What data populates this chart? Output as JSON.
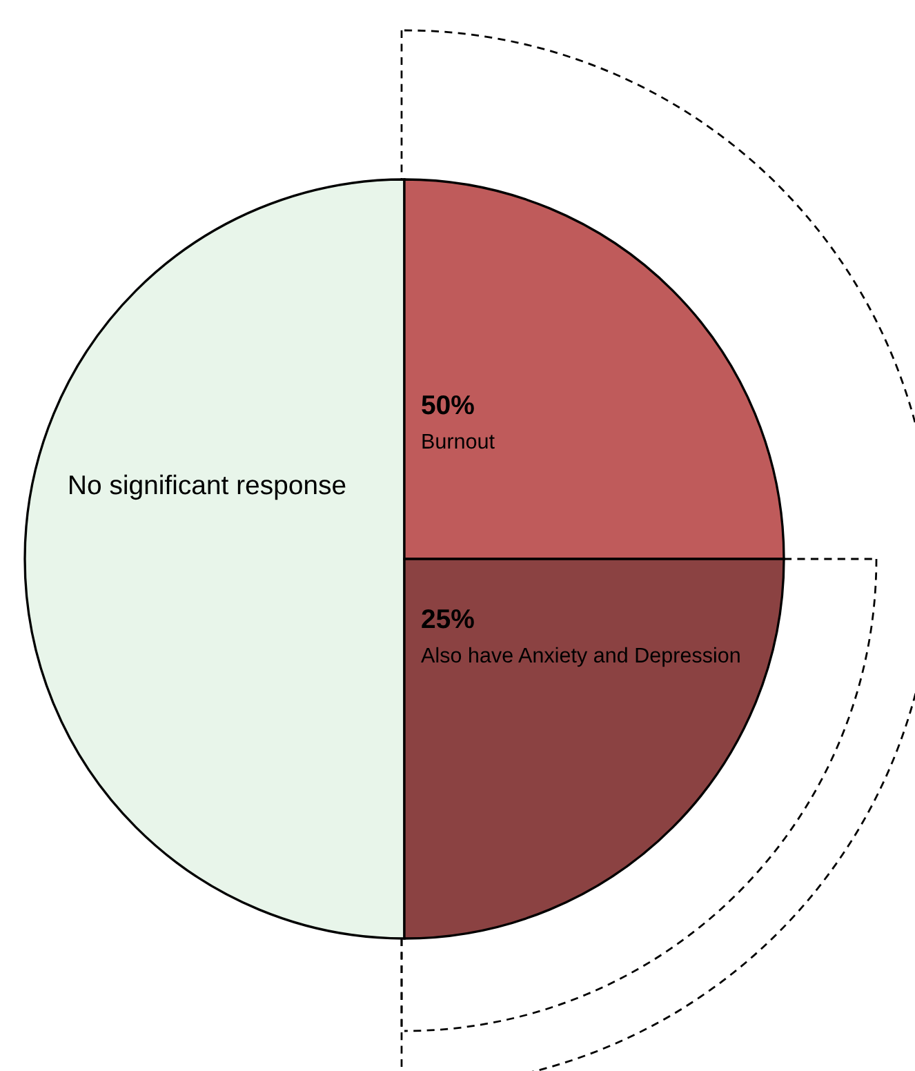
{
  "chart_data": {
    "type": "pie",
    "categories": [
      "No significant response",
      "Burnout",
      "Also have Anxiety and Depression"
    ],
    "values": [
      50,
      25,
      25
    ],
    "colors": [
      "#e8f5ea",
      "#bf5b5b",
      "#8b4242"
    ],
    "annotations": [
      "50%",
      "25%"
    ],
    "legend": false
  }
}
